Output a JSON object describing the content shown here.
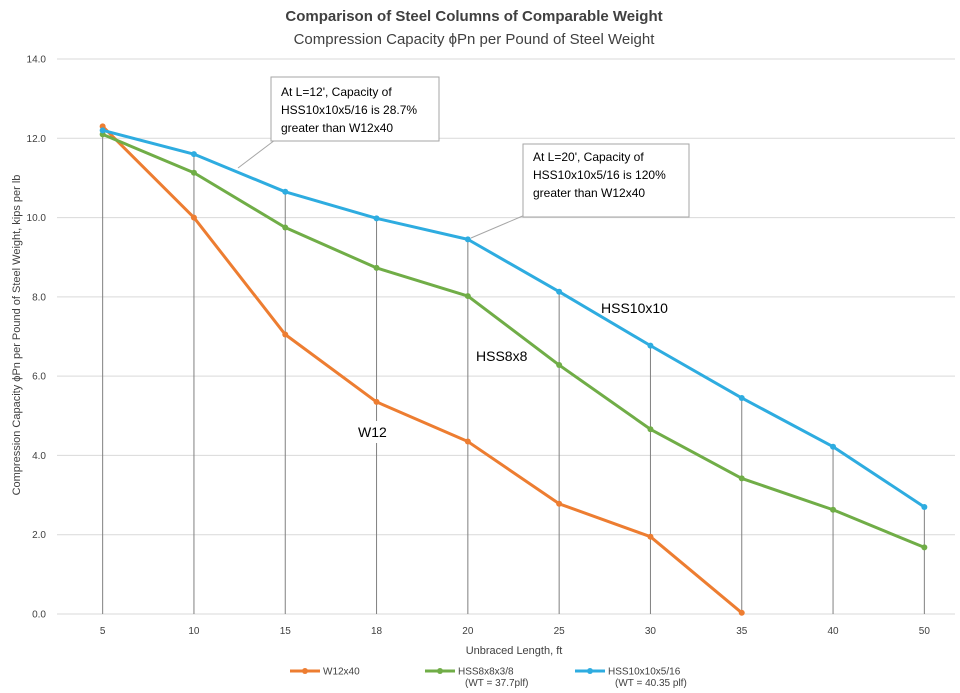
{
  "chart_data": {
    "type": "line",
    "title": "Comparison of Steel Columns of Comparable Weight",
    "subtitle": "Compression Capacity ϕPn per Pound of Steel Weight",
    "xlabel": "Unbraced Length, ft",
    "ylabel": "Compression Capacity ϕPn per Pound of Steel Weight, kips per lb",
    "categories": [
      "5",
      "10",
      "15",
      "18",
      "20",
      "25",
      "30",
      "35",
      "40",
      "50"
    ],
    "ylim": [
      0,
      14
    ],
    "yticks": [
      "0.0",
      "2.0",
      "4.0",
      "6.0",
      "8.0",
      "10.0",
      "12.0",
      "14.0"
    ],
    "grid": true,
    "legend_position": "bottom",
    "series": [
      {
        "name": "W12x40",
        "note": "",
        "color": "#ED7D31",
        "values": [
          12.3,
          10.0,
          7.05,
          5.35,
          4.35,
          2.78,
          1.95,
          0.03,
          null,
          null
        ]
      },
      {
        "name": "HSS8x8x3/8",
        "note": "(WT = 37.7plf)",
        "color": "#70AD47",
        "values": [
          12.1,
          11.13,
          9.75,
          8.73,
          8.02,
          6.28,
          4.66,
          3.42,
          2.63,
          1.68
        ]
      },
      {
        "name": "HSS10x10x5/16",
        "note": "(WT = 40.35 plf)",
        "color": "#2EACE0",
        "values": [
          12.2,
          11.6,
          10.65,
          9.98,
          9.45,
          8.13,
          6.77,
          5.45,
          4.22,
          2.7
        ]
      }
    ],
    "annotations": [
      {
        "lines": [
          "At L=12', Capacity of",
          "HSS10x10x5/16 is 28.7%",
          "greater than W12x40"
        ]
      },
      {
        "lines": [
          "At L=20', Capacity of",
          "HSS10x10x5/16 is 120%",
          "greater than W12x40"
        ]
      }
    ],
    "series_labels": [
      "HSS10x10",
      "HSS8x8",
      "W12"
    ]
  }
}
